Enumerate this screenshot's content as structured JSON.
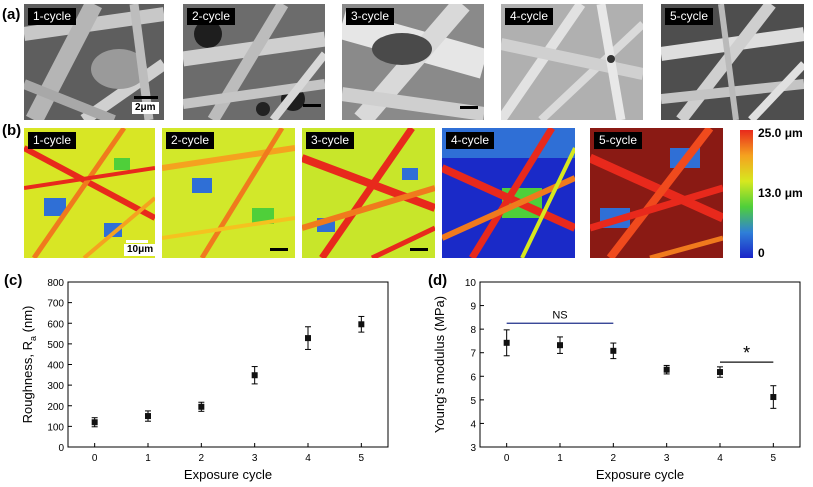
{
  "figure": {
    "panel_a": {
      "letter": "(a)",
      "tiles": [
        "1-cycle",
        "2-cycle",
        "3-cycle",
        "4-cycle",
        "5-cycle"
      ],
      "scale_label": "2μm"
    },
    "panel_b": {
      "letter": "(b)",
      "tiles": [
        "1-cycle",
        "2-cycle",
        "3-cycle",
        "4-cycle",
        "5-cycle"
      ],
      "scale_label": "10μm",
      "colorbar": {
        "top": "25.0 μm",
        "mid": "13.0 μm",
        "bottom": "0",
        "colors": [
          "#e8291c",
          "#f5a21f",
          "#d7e81f",
          "#4fcf3a",
          "#2f7fd8",
          "#1a24c8"
        ]
      }
    },
    "panel_c": {
      "letter": "(c)"
    },
    "panel_d": {
      "letter": "(d)"
    }
  },
  "chart_data": [
    {
      "type": "scatter",
      "xlabel": "Exposure cycle",
      "ylabel_main": "Roughness, R",
      "ylabel_sub": "a",
      "ylabel_unit": " (nm)",
      "x": [
        0,
        1,
        2,
        3,
        4,
        5
      ],
      "y": [
        120,
        150,
        195,
        348,
        528,
        595
      ],
      "yerr": [
        22,
        25,
        22,
        42,
        55,
        38
      ],
      "xlim": [
        -0.5,
        5.5
      ],
      "ylim": [
        0,
        800
      ],
      "xticks": [
        "0",
        "1",
        "2",
        "3",
        "4",
        "5"
      ],
      "yticks": [
        "0",
        "100",
        "200",
        "300",
        "400",
        "500",
        "600",
        "700",
        "800"
      ],
      "marker_color": "#111111"
    },
    {
      "type": "scatter",
      "xlabel": "Exposure cycle",
      "ylabel": "Young's modulus (MPa)",
      "x": [
        0,
        1,
        2,
        3,
        4,
        5
      ],
      "y": [
        7.42,
        7.32,
        7.08,
        6.28,
        6.18,
        5.12
      ],
      "yerr": [
        0.55,
        0.35,
        0.33,
        0.18,
        0.22,
        0.48
      ],
      "xlim": [
        -0.5,
        5.5
      ],
      "ylim": [
        3,
        10
      ],
      "xticks": [
        "0",
        "1",
        "2",
        "3",
        "4",
        "5"
      ],
      "yticks": [
        "3",
        "4",
        "5",
        "6",
        "7",
        "8",
        "9",
        "10"
      ],
      "annotations": [
        {
          "text": "NS",
          "x1": 0,
          "x2": 2,
          "y": 8.25,
          "color": "#1f2f8a"
        },
        {
          "text": "*",
          "x1": 4,
          "x2": 5,
          "y": 6.6,
          "color": "#111111"
        }
      ],
      "marker_color": "#111111"
    }
  ]
}
